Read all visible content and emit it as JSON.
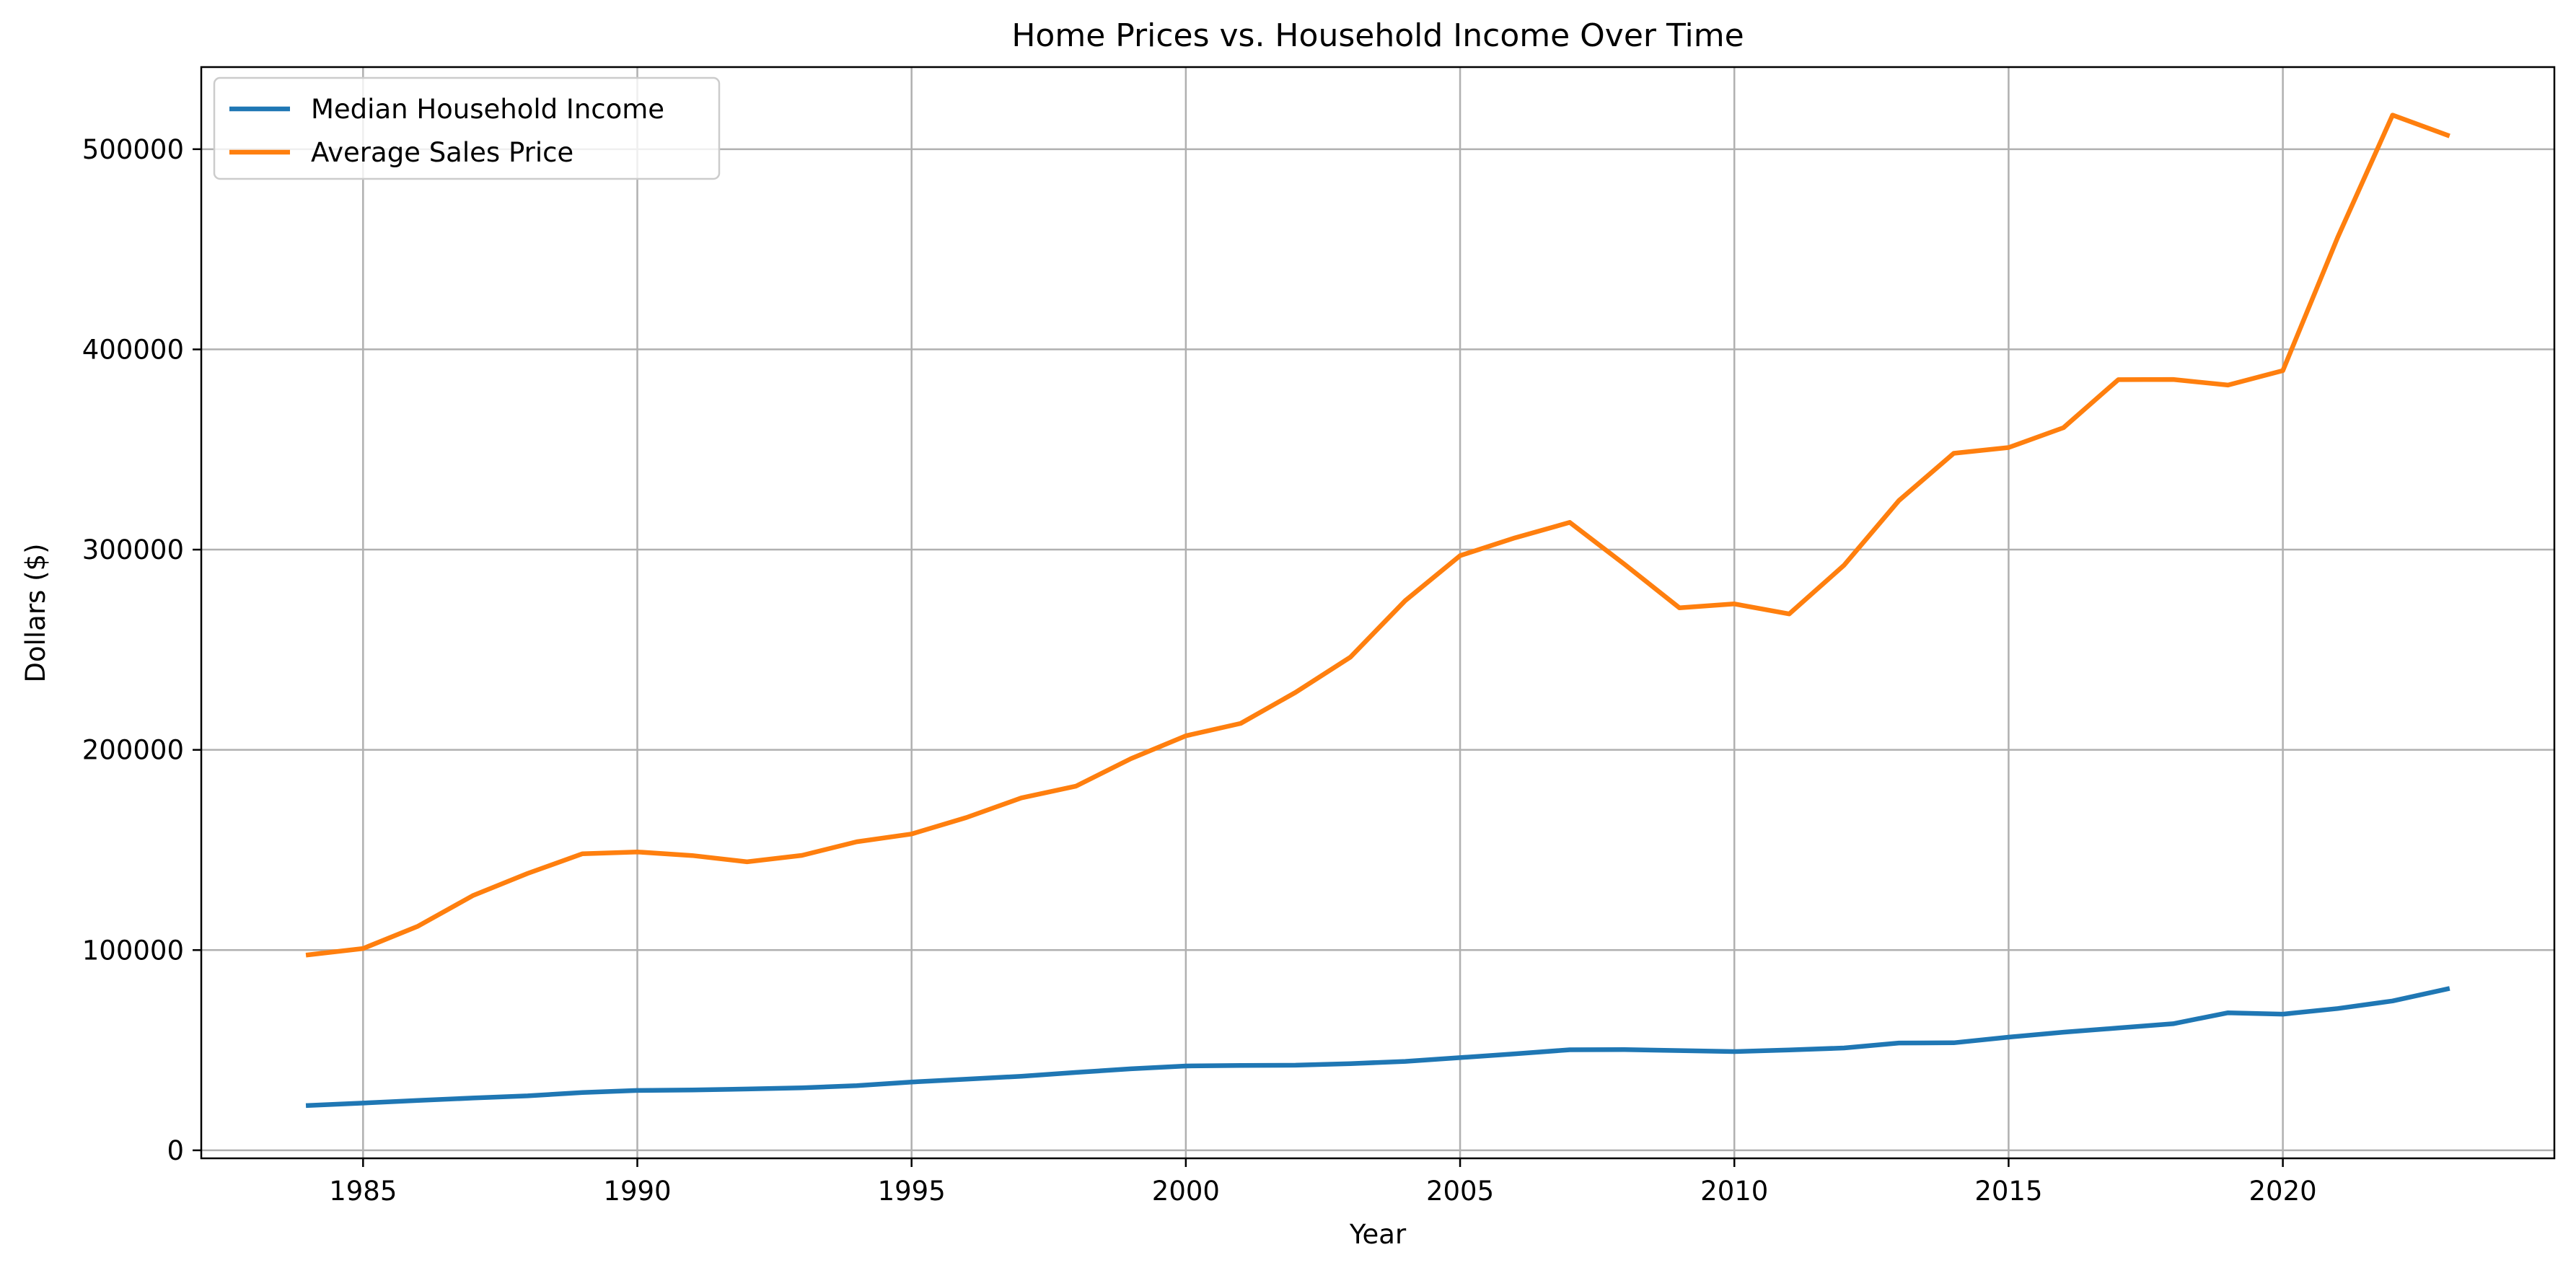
{
  "chart_data": {
    "type": "line",
    "title": "Home Prices vs. Household Income Over Time",
    "xlabel": "Year",
    "ylabel": "Dollars ($)",
    "xlim": [
      1982.05,
      2024.95
    ],
    "ylim": [
      -4000,
      541000
    ],
    "grid": true,
    "legend_position": "top-left",
    "x_ticks": [
      1985,
      1990,
      1995,
      2000,
      2005,
      2010,
      2015,
      2020
    ],
    "y_ticks": [
      0,
      100000,
      200000,
      300000,
      400000,
      500000
    ],
    "x": [
      1984,
      1985,
      1986,
      1987,
      1988,
      1989,
      1990,
      1991,
      1992,
      1993,
      1994,
      1995,
      1996,
      1997,
      1998,
      1999,
      2000,
      2001,
      2002,
      2003,
      2004,
      2005,
      2006,
      2007,
      2008,
      2009,
      2010,
      2011,
      2012,
      2013,
      2014,
      2015,
      2016,
      2017,
      2018,
      2019,
      2020,
      2021,
      2022,
      2023
    ],
    "series": [
      {
        "name": "Median Household Income",
        "color": "#1f77b4",
        "values": [
          22400,
          23600,
          24900,
          26100,
          27200,
          28900,
          29900,
          30100,
          30600,
          31200,
          32300,
          34100,
          35500,
          37000,
          38900,
          40700,
          42100,
          42400,
          42500,
          43300,
          44400,
          46300,
          48200,
          50200,
          50300,
          49800,
          49300,
          50100,
          51100,
          53600,
          53700,
          56500,
          59000,
          61100,
          63200,
          68700,
          68000,
          70800,
          74600,
          80600
        ]
      },
      {
        "name": "Average Sales Price",
        "color": "#ff7f0e",
        "values": [
          97600,
          100800,
          111900,
          127200,
          138300,
          148100,
          149000,
          147200,
          144100,
          147300,
          154100,
          158000,
          166200,
          176000,
          181900,
          195600,
          207000,
          213200,
          228700,
          246300,
          274500,
          297000,
          305900,
          313600,
          292600,
          270900,
          272900,
          267900,
          292200,
          324500,
          348100,
          351000,
          360900,
          384900,
          385000,
          382200,
          389400,
          456000,
          517000,
          507000
        ]
      }
    ]
  }
}
